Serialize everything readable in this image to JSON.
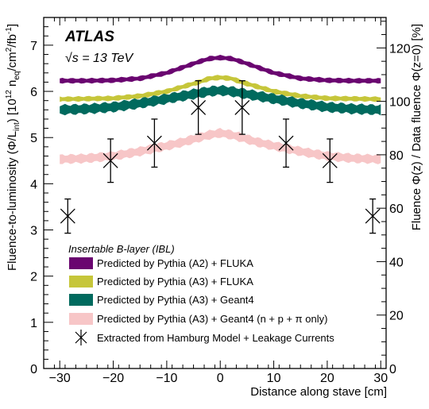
{
  "chart_data": {
    "type": "line",
    "x_axis": {
      "label": "Distance along stave [cm]",
      "range": [
        -33,
        31
      ],
      "ticks": [
        -30,
        -20,
        -10,
        0,
        10,
        20,
        30
      ],
      "tick_labels": [
        "−30",
        "−20",
        "−10",
        "0",
        "10",
        "20",
        "30"
      ]
    },
    "y_axis_left": {
      "label": "Fluence-to-luminosity (Φ/L_int) [10^12 n_eq/cm^2/fb^-1]",
      "range": [
        0,
        7.6
      ],
      "ticks": [
        0,
        1,
        2,
        3,
        4,
        5,
        6,
        7
      ],
      "tick_labels": [
        "0",
        "1",
        "2",
        "3",
        "4",
        "5",
        "6",
        "7"
      ]
    },
    "y_axis_right": {
      "label": "Fluence Φ(z) / Data fluence Φ(z=0) [%]",
      "range": [
        0,
        131.4
      ],
      "ticks": [
        0,
        20,
        40,
        60,
        80,
        100,
        120
      ],
      "tick_labels": [
        "0",
        "20",
        "40",
        "60",
        "80",
        "100",
        "120"
      ]
    },
    "annotations": {
      "experiment": "ATLAS",
      "energy_prefix": "√s",
      "energy_rest": " = 13 TeV"
    },
    "legend": {
      "header": "Insertable B-layer (IBL)",
      "entries": [
        "Predicted by Pythia (A2) + FLUKA",
        "Predicted by Pythia (A3) + FLUKA",
        "Predicted by Pythia (A3) + Geant4",
        "Predicted by Pythia (A3) + Geant4 (n + p + π only)",
        "Extracted from Hamburg Model + Leakage Currents"
      ]
    },
    "series": [
      {
        "name": "Predicted by Pythia (A2) + FLUKA",
        "kind": "band",
        "color": "#6a0570",
        "x": [
          -30,
          -25,
          -20,
          -15,
          -10,
          -7,
          -4,
          -2,
          0,
          2,
          4,
          7,
          10,
          15,
          20,
          25,
          30
        ],
        "y": [
          6.23,
          6.23,
          6.24,
          6.28,
          6.4,
          6.52,
          6.64,
          6.71,
          6.73,
          6.71,
          6.64,
          6.52,
          6.4,
          6.28,
          6.24,
          6.23,
          6.23
        ],
        "half_width": 0.05
      },
      {
        "name": "Predicted by Pythia (A3) + FLUKA",
        "kind": "band",
        "color": "#c6c63a",
        "x": [
          -30,
          -25,
          -20,
          -15,
          -10,
          -7,
          -4,
          -2,
          0,
          2,
          4,
          7,
          10,
          15,
          20,
          25,
          30
        ],
        "y": [
          5.83,
          5.84,
          5.85,
          5.9,
          6.0,
          6.1,
          6.2,
          6.28,
          6.3,
          6.28,
          6.2,
          6.1,
          6.0,
          5.9,
          5.85,
          5.84,
          5.83
        ],
        "half_width": 0.05
      },
      {
        "name": "Predicted by Pythia (A3) + Geant4",
        "kind": "band",
        "color": "#006a5e",
        "x": [
          -30,
          -25,
          -20,
          -15,
          -10,
          -7,
          -4,
          -2,
          0,
          2,
          4,
          7,
          10,
          15,
          20,
          25,
          30
        ],
        "y": [
          5.6,
          5.62,
          5.66,
          5.74,
          5.84,
          5.9,
          5.96,
          6.0,
          6.02,
          6.0,
          5.96,
          5.9,
          5.84,
          5.74,
          5.66,
          5.62,
          5.6
        ],
        "half_width": 0.1
      },
      {
        "name": "Predicted by Pythia (A3) + Geant4 (n + p + π only)",
        "kind": "band",
        "color": "#f7c6c7",
        "x": [
          -30,
          -25,
          -20,
          -15,
          -10,
          -7,
          -4,
          -2,
          0,
          2,
          4,
          7,
          10,
          15,
          20,
          25,
          30
        ],
        "y": [
          4.53,
          4.55,
          4.6,
          4.7,
          4.82,
          4.9,
          5.0,
          5.06,
          5.1,
          5.06,
          5.0,
          4.9,
          4.82,
          4.7,
          4.6,
          4.55,
          4.53
        ],
        "half_width": 0.09
      },
      {
        "name": "Extracted from Hamburg Model + Leakage Currents",
        "kind": "points",
        "color": "#000000",
        "x": [
          -28.5,
          -20.5,
          -12.3,
          -4.1,
          4.1,
          12.3,
          20.5,
          28.5
        ],
        "y": [
          3.3,
          4.5,
          4.88,
          5.65,
          5.65,
          4.88,
          4.5,
          3.3
        ],
        "err": [
          0.37,
          0.47,
          0.52,
          0.58,
          0.58,
          0.52,
          0.47,
          0.37
        ]
      }
    ]
  }
}
